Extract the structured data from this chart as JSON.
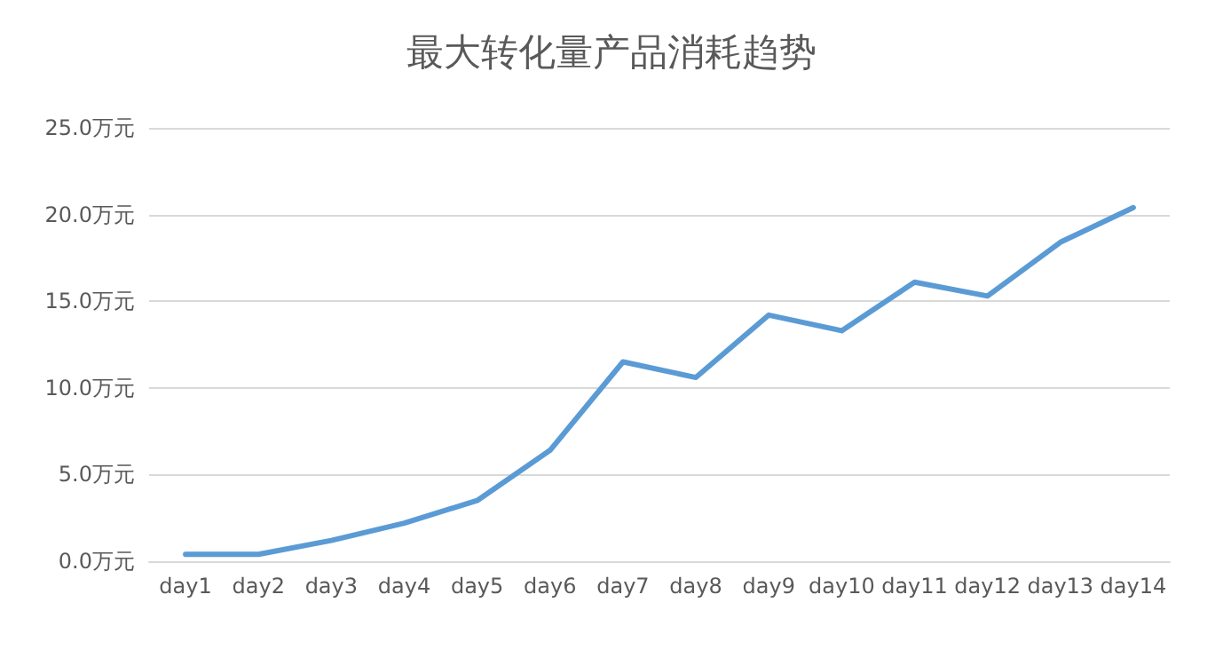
{
  "chart_data": {
    "type": "line",
    "title": "最大转化量产品消耗趋势",
    "categories": [
      "day1",
      "day2",
      "day3",
      "day4",
      "day5",
      "day6",
      "day7",
      "day8",
      "day9",
      "day10",
      "day11",
      "day12",
      "day13",
      "day14"
    ],
    "series": [
      {
        "color": "#5b9bd5",
        "values": [
          0.4,
          0.4,
          1.2,
          2.2,
          3.5,
          6.4,
          11.5,
          10.6,
          14.2,
          13.3,
          16.1,
          15.3,
          18.4,
          20.4
        ]
      }
    ],
    "ylim": [
      0,
      25
    ],
    "yticks": [
      {
        "value": 0,
        "label": "0.0万元"
      },
      {
        "value": 5,
        "label": "5.0万元"
      },
      {
        "value": 10,
        "label": "10.0万元"
      },
      {
        "value": 15,
        "label": "15.0万元"
      },
      {
        "value": 20,
        "label": "20.0万元"
      },
      {
        "value": 25,
        "label": "25.0万元"
      }
    ],
    "grid": "y",
    "marker": "none",
    "line_style": "solid"
  }
}
